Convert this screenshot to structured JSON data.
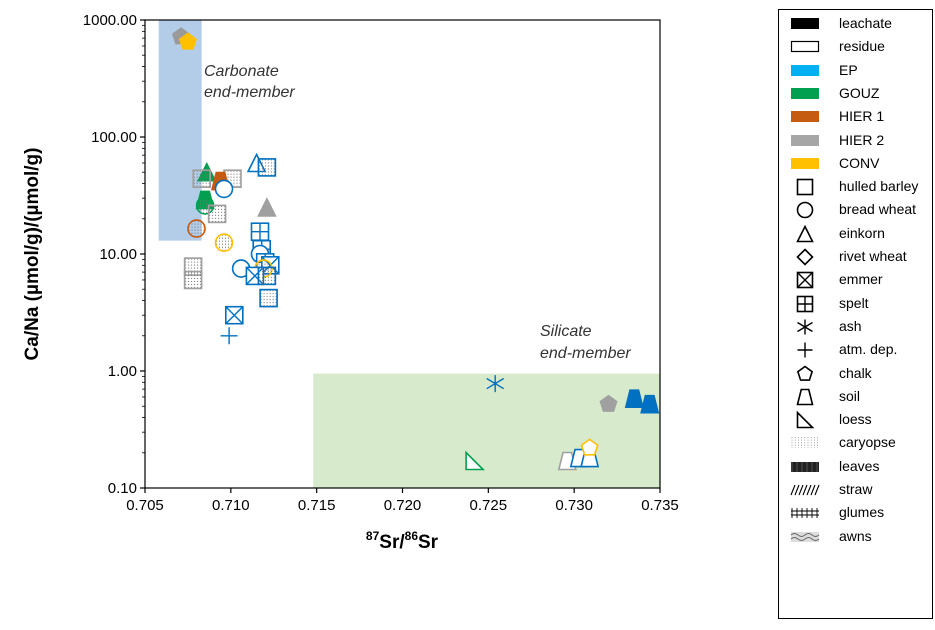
{
  "chart_data": {
    "type": "scatter",
    "xlabel_pre": "87",
    "xlabel_mid": "Sr/",
    "xlabel_pre2": "86",
    "xlabel_post": "Sr",
    "ylabel": "Ca/Na (µmol/g)/(µmol/g)",
    "xlim": [
      0.705,
      0.735
    ],
    "ylim": [
      0.1,
      1000
    ],
    "y_scale": "log",
    "x_ticks": [
      "0.705",
      "0.710",
      "0.715",
      "0.720",
      "0.725",
      "0.730",
      "0.735"
    ],
    "y_ticks": [
      "0.10",
      "1.00",
      "10.00",
      "100.00",
      "1000.00"
    ],
    "grid": false,
    "regions": [
      {
        "label_line1": "Carbonate",
        "label_line2": "end-member",
        "x": [
          0.7058,
          0.7083
        ],
        "y": [
          13,
          1000
        ],
        "color": "#b3cde9"
      },
      {
        "label_line1": "Silicate",
        "label_line2": "end-member",
        "x": [
          0.7148,
          0.735
        ],
        "y": [
          0.1,
          0.95
        ],
        "color": "#d7eacb"
      }
    ],
    "points": [
      {
        "x": 0.7071,
        "y": 720,
        "shape": "chalk",
        "color": "#9a9a9a",
        "fill": "solid"
      },
      {
        "x": 0.7075,
        "y": 650,
        "shape": "chalk",
        "color": "#ffc000",
        "fill": "solid"
      },
      {
        "x": 0.7115,
        "y": 60,
        "shape": "einkorn",
        "color": "#0070c0",
        "fill": "open"
      },
      {
        "x": 0.7121,
        "y": 55,
        "shape": "barley",
        "color": "#0070c0",
        "fill": "dotted"
      },
      {
        "x": 0.7086,
        "y": 50,
        "shape": "einkorn",
        "color": "#00a050",
        "fill": "solid"
      },
      {
        "x": 0.7083,
        "y": 44,
        "shape": "barley",
        "color": "#a0a0a0",
        "fill": "dotted"
      },
      {
        "x": 0.7101,
        "y": 44,
        "shape": "barley",
        "color": "#a0a0a0",
        "fill": "dotted"
      },
      {
        "x": 0.7094,
        "y": 42,
        "shape": "soil",
        "color": "#c55a11",
        "fill": "solid"
      },
      {
        "x": 0.7096,
        "y": 36,
        "shape": "wheat",
        "color": "#0070c0",
        "fill": "open"
      },
      {
        "x": 0.7085,
        "y": 29,
        "shape": "soil",
        "color": "#00a050",
        "fill": "solid"
      },
      {
        "x": 0.7085,
        "y": 26,
        "shape": "wheat",
        "color": "#00a050",
        "fill": "dotted"
      },
      {
        "x": 0.7092,
        "y": 22,
        "shape": "barley",
        "color": "#a0a0a0",
        "fill": "dotted"
      },
      {
        "x": 0.7121,
        "y": 25,
        "shape": "einkorn",
        "color": "#a0a0a0",
        "fill": "solid"
      },
      {
        "x": 0.708,
        "y": 16.5,
        "shape": "wheat",
        "color": "#c55a11",
        "fill": "dotted"
      },
      {
        "x": 0.7117,
        "y": 15.5,
        "shape": "spelt",
        "color": "#0070c0",
        "fill": "open"
      },
      {
        "x": 0.7096,
        "y": 12.5,
        "shape": "wheat",
        "color": "#ffc000",
        "fill": "dotted"
      },
      {
        "x": 0.7118,
        "y": 11,
        "shape": "spelt",
        "color": "#0070c0",
        "fill": "open"
      },
      {
        "x": 0.7117,
        "y": 10,
        "shape": "wheat",
        "color": "#0070c0",
        "fill": "open"
      },
      {
        "x": 0.712,
        "y": 8.5,
        "shape": "spelt",
        "color": "#0070c0",
        "fill": "open"
      },
      {
        "x": 0.7123,
        "y": 8,
        "shape": "emmer",
        "color": "#0070c0",
        "fill": "open"
      },
      {
        "x": 0.7078,
        "y": 7.8,
        "shape": "barley",
        "color": "#a0a0a0",
        "fill": "dotted"
      },
      {
        "x": 0.7106,
        "y": 7.5,
        "shape": "wheat",
        "color": "#0070c0",
        "fill": "open"
      },
      {
        "x": 0.7119,
        "y": 7.5,
        "shape": "wheat",
        "color": "#ffc000",
        "fill": "dotted"
      },
      {
        "x": 0.7114,
        "y": 6.5,
        "shape": "emmer",
        "color": "#0070c0",
        "fill": "open"
      },
      {
        "x": 0.7078,
        "y": 6,
        "shape": "barley",
        "color": "#a0a0a0",
        "fill": "dotted"
      },
      {
        "x": 0.7121,
        "y": 6.5,
        "shape": "barley",
        "color": "#0070c0",
        "fill": "dotted"
      },
      {
        "x": 0.7122,
        "y": 4.2,
        "shape": "barley",
        "color": "#0070c0",
        "fill": "dotted"
      },
      {
        "x": 0.7102,
        "y": 3,
        "shape": "emmer",
        "color": "#0070c0",
        "fill": "open"
      },
      {
        "x": 0.7099,
        "y": 2,
        "shape": "atm",
        "color": "#0070c0",
        "fill": "open"
      },
      {
        "x": 0.7254,
        "y": 0.78,
        "shape": "ash",
        "color": "#0070c0",
        "fill": "open"
      },
      {
        "x": 0.7242,
        "y": 0.17,
        "shape": "loess",
        "color": "#00a050",
        "fill": "open"
      },
      {
        "x": 0.732,
        "y": 0.52,
        "shape": "chalk",
        "color": "#a0a0a0",
        "fill": "solid"
      },
      {
        "x": 0.7335,
        "y": 0.58,
        "shape": "soil",
        "color": "#0070c0",
        "fill": "solid"
      },
      {
        "x": 0.7344,
        "y": 0.52,
        "shape": "soil",
        "color": "#0070c0",
        "fill": "solid"
      },
      {
        "x": 0.7296,
        "y": 0.17,
        "shape": "soil",
        "color": "#a0a0a0",
        "fill": "open"
      },
      {
        "x": 0.7303,
        "y": 0.18,
        "shape": "soil",
        "color": "#0070c0",
        "fill": "open"
      },
      {
        "x": 0.7309,
        "y": 0.18,
        "shape": "soil",
        "color": "#0070c0",
        "fill": "open"
      },
      {
        "x": 0.7309,
        "y": 0.22,
        "shape": "chalk",
        "color": "#ffc000",
        "fill": "open"
      }
    ]
  },
  "legend": {
    "items": [
      {
        "label": "leachate",
        "sym": "solid-rect",
        "color": "#000000"
      },
      {
        "label": "residue",
        "sym": "open-rect",
        "color": "#000000"
      },
      {
        "label": "EP",
        "sym": "solid-rect",
        "color": "#00b0f0"
      },
      {
        "label": "GOUZ",
        "sym": "solid-rect",
        "color": "#00a050"
      },
      {
        "label": "HIER 1",
        "sym": "solid-rect",
        "color": "#c55a11"
      },
      {
        "label": "HIER 2",
        "sym": "solid-rect",
        "color": "#a6a6a6"
      },
      {
        "label": "CONV",
        "sym": "solid-rect",
        "color": "#ffc000"
      },
      {
        "label": "hulled barley",
        "sym": "barley",
        "color": "#000000"
      },
      {
        "label": "bread wheat",
        "sym": "wheat",
        "color": "#000000"
      },
      {
        "label": "einkorn",
        "sym": "einkorn",
        "color": "#000000"
      },
      {
        "label": "rivet wheat",
        "sym": "diamond",
        "color": "#000000"
      },
      {
        "label": "emmer",
        "sym": "emmer",
        "color": "#000000"
      },
      {
        "label": "spelt",
        "sym": "spelt",
        "color": "#000000"
      },
      {
        "label": "ash",
        "sym": "ash",
        "color": "#000000"
      },
      {
        "label": "atm. dep.",
        "sym": "atm",
        "color": "#000000"
      },
      {
        "label": "chalk",
        "sym": "chalk",
        "color": "#000000"
      },
      {
        "label": "soil",
        "sym": "soil",
        "color": "#000000"
      },
      {
        "label": "loess",
        "sym": "loess",
        "color": "#000000"
      },
      {
        "label": "caryopse",
        "sym": "pattern-dots",
        "color": "#888888"
      },
      {
        "label": "leaves",
        "sym": "pattern-dense",
        "color": "#000000"
      },
      {
        "label": "straw",
        "sym": "pattern-diag",
        "color": "#000000"
      },
      {
        "label": "glumes",
        "sym": "pattern-grid",
        "color": "#000000"
      },
      {
        "label": "awns",
        "sym": "pattern-wave",
        "color": "#555555"
      }
    ]
  }
}
